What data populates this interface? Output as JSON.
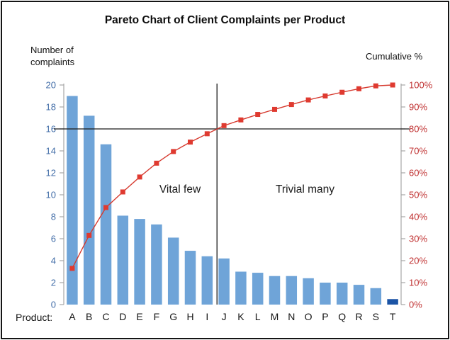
{
  "chart_data": {
    "type": "bar+line pareto",
    "title": "Pareto Chart of Client Complaints per Product",
    "left_axis_label": "Number of\ncomplaints",
    "right_axis_label": "Cumulative %",
    "x_axis_prefix": "Product:",
    "categories": [
      "A",
      "B",
      "C",
      "D",
      "E",
      "F",
      "G",
      "H",
      "I",
      "J",
      "K",
      "L",
      "M",
      "N",
      "O",
      "P",
      "Q",
      "R",
      "S",
      "T"
    ],
    "bar_values": [
      19,
      17.2,
      14.6,
      8.1,
      7.8,
      7.3,
      6.1,
      4.9,
      4.4,
      4.2,
      3.0,
      2.9,
      2.6,
      2.6,
      2.4,
      2.0,
      2.0,
      1.8,
      1.5,
      0.5
    ],
    "cumulative_pct": [
      16.5,
      31.5,
      44.2,
      51.3,
      58.1,
      64.4,
      69.7,
      74.0,
      77.8,
      81.5,
      84.1,
      86.6,
      88.9,
      91.1,
      93.2,
      95.0,
      96.7,
      98.3,
      99.6,
      100.0
    ],
    "left_ticks": [
      "0",
      "2",
      "4",
      "6",
      "8",
      "10",
      "12",
      "14",
      "16",
      "18",
      "20"
    ],
    "right_ticks": [
      "0%",
      "10%",
      "20%",
      "30%",
      "40%",
      "50%",
      "60%",
      "70%",
      "80%",
      "90%",
      "100%"
    ],
    "ylim_left": [
      0,
      20
    ],
    "ylim_right": [
      0,
      100
    ],
    "legend": "none",
    "grid": "off",
    "annotations": {
      "vital_few": "Vital few",
      "trivial_many": "Trivial many"
    },
    "reference_lines": {
      "horizontal_at_pct": 80,
      "horizontal_at_left_value": 16,
      "vertical_between": [
        "I",
        "J"
      ]
    },
    "highlight_last_bar": true,
    "colors": {
      "bar": "#6FA4D8",
      "last_bar": "#1B54A5",
      "line": "#D63A2F",
      "marker": "#DF3A30",
      "left_tick_text": "#436EA8",
      "right_tick_text": "#C03232",
      "category_text": "#141414",
      "axis": "#A6A6A6",
      "reference": "#1A1A1A"
    }
  }
}
